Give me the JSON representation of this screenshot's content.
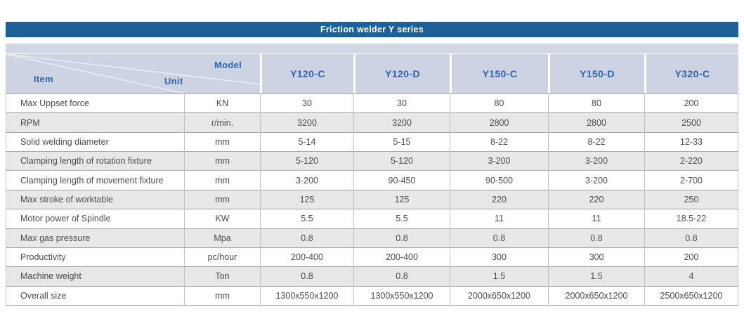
{
  "title_bar": {
    "text": "Friction welder Y series"
  },
  "table": {
    "corner": {
      "item_label": "Item",
      "unit_label": "Unit",
      "model_label": "Model"
    },
    "models": [
      "Y120-C",
      "Y120-D",
      "Y150-C",
      "Y150-D",
      "Y320-C"
    ],
    "rows": [
      {
        "item": "Max Uppset force",
        "unit": "KN",
        "values": [
          "30",
          "30",
          "80",
          "80",
          "200"
        ]
      },
      {
        "item": "RPM",
        "unit": "r/min.",
        "values": [
          "3200",
          "3200",
          "2800",
          "2800",
          "2500"
        ]
      },
      {
        "item": "Solid welding diameter",
        "unit": "mm",
        "values": [
          "5-14",
          "5-15",
          "8-22",
          "8-22",
          "12-33"
        ]
      },
      {
        "item": "Clamping length of rotation fixture",
        "unit": "mm",
        "values": [
          "5-120",
          "5-120",
          "3-200",
          "3-200",
          "2-220"
        ]
      },
      {
        "item": "Clamping length of movement fixture",
        "unit": "mm",
        "values": [
          "3-200",
          "90-450",
          "90-500",
          "3-200",
          "2-700"
        ]
      },
      {
        "item": "Max stroke of worktable",
        "unit": "mm",
        "values": [
          "125",
          "125",
          "220",
          "220",
          "250"
        ]
      },
      {
        "item": "Motor power of Spindle",
        "unit": "KW",
        "values": [
          "5.5",
          "5.5",
          "11",
          "11",
          "18.5-22"
        ]
      },
      {
        "item": "Max gas pressure",
        "unit": "Mpa",
        "values": [
          "0.8",
          "0.8",
          "0.8",
          "0.8",
          "0.8"
        ]
      },
      {
        "item": "Productivity",
        "unit": "pc/hour",
        "values": [
          "200-400",
          "200-400",
          "300",
          "300",
          "200"
        ]
      },
      {
        "item": "Machine weight",
        "unit": "Ton",
        "values": [
          "0.8",
          "0.8",
          "1.5",
          "1.5",
          "4"
        ]
      },
      {
        "item": "Overall size",
        "unit": "mm",
        "values": [
          "1300x550x1200",
          "1300x550x1200",
          "2000x650x1200",
          "2000x650x1200",
          "2500x650x1200"
        ]
      }
    ]
  },
  "colors": {
    "title_bar_bg": "#1e6199",
    "header_bg": "#cdd3e3",
    "band_bg": "#d2d7e5",
    "header_text": "#2c66ae",
    "row_alt_bg": "#e7e7e9",
    "body_text": "#4c4c4c",
    "row_border": "#a6a6a9"
  }
}
